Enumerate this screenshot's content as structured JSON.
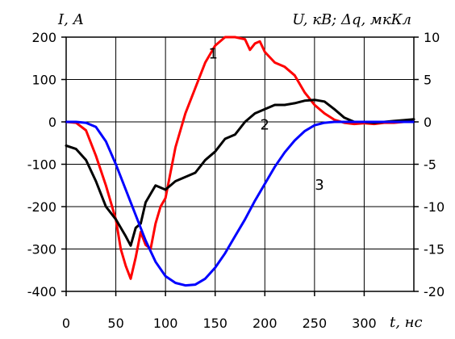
{
  "chart_data": {
    "type": "line",
    "left_axis_label": "I, А",
    "right_axis_label": "U, кВ; Δq, мкКл",
    "x_axis_label": "t, нс",
    "x_ticks": [
      0,
      50,
      100,
      150,
      200,
      250,
      300
    ],
    "xlim": [
      0,
      350
    ],
    "ylim_left": [
      -400,
      200
    ],
    "ylim_right": [
      -20,
      10
    ],
    "left_ticks": [
      200,
      100,
      0,
      -100,
      -200,
      -300,
      -400
    ],
    "right_ticks": [
      10,
      5,
      0,
      -5,
      -10,
      -15,
      -20
    ],
    "grid": true,
    "series": [
      {
        "name": "1",
        "color": "#ff0000",
        "axis": "left",
        "x": [
          0,
          10,
          20,
          30,
          40,
          50,
          55,
          60,
          65,
          70,
          75,
          80,
          85,
          90,
          95,
          100,
          105,
          110,
          120,
          130,
          140,
          150,
          160,
          170,
          180,
          185,
          190,
          195,
          200,
          210,
          220,
          230,
          240,
          250,
          260,
          270,
          280,
          290,
          300,
          310,
          320,
          330,
          340,
          350
        ],
        "y": [
          0,
          -2,
          -20,
          -80,
          -150,
          -230,
          -300,
          -340,
          -370,
          -320,
          -260,
          -290,
          -300,
          -240,
          -200,
          -180,
          -120,
          -60,
          20,
          80,
          140,
          180,
          200,
          200,
          195,
          170,
          185,
          190,
          165,
          140,
          130,
          110,
          70,
          40,
          20,
          5,
          -2,
          -5,
          -3,
          -5,
          -2,
          -2,
          0,
          0
        ]
      },
      {
        "name": "2",
        "color": "#000000",
        "axis": "right",
        "x": [
          0,
          10,
          20,
          30,
          40,
          50,
          60,
          65,
          70,
          75,
          80,
          90,
          100,
          110,
          120,
          130,
          140,
          150,
          160,
          170,
          180,
          190,
          200,
          210,
          220,
          230,
          240,
          250,
          260,
          270,
          280,
          290,
          300,
          310,
          320,
          330,
          340,
          350
        ],
        "y": [
          -2.8,
          -3.2,
          -4.5,
          -7.0,
          -10.0,
          -11.5,
          -13.5,
          -14.6,
          -12.5,
          -12.0,
          -9.5,
          -7.5,
          -8.0,
          -7.0,
          -6.5,
          -6.0,
          -4.5,
          -3.5,
          -2.0,
          -1.5,
          0.0,
          1.0,
          1.5,
          2.0,
          2.0,
          2.2,
          2.5,
          2.6,
          2.4,
          1.5,
          0.5,
          0.0,
          0.0,
          -0.1,
          0.0,
          0.1,
          0.2,
          0.3
        ]
      },
      {
        "name": "3",
        "color": "#0000ff",
        "axis": "right",
        "x": [
          0,
          10,
          20,
          30,
          40,
          50,
          60,
          70,
          80,
          90,
          100,
          110,
          120,
          130,
          140,
          150,
          160,
          170,
          180,
          190,
          200,
          210,
          220,
          230,
          240,
          250,
          260,
          270,
          280,
          290,
          300,
          310,
          320,
          330,
          340,
          350
        ],
        "y": [
          0,
          0,
          -0.1,
          -0.6,
          -2.3,
          -5.0,
          -8.0,
          -11.0,
          -14.0,
          -16.5,
          -18.2,
          -19.0,
          -19.3,
          -19.2,
          -18.5,
          -17.2,
          -15.5,
          -13.5,
          -11.5,
          -9.3,
          -7.3,
          -5.3,
          -3.6,
          -2.2,
          -1.1,
          -0.4,
          -0.1,
          0,
          0,
          0,
          0,
          0,
          0,
          0,
          0,
          0
        ]
      }
    ],
    "curve_labels": [
      {
        "text": "1",
        "x": 148,
        "y": 150,
        "axis": "left"
      },
      {
        "text": "2",
        "x": 200,
        "y": -0.9,
        "axis": "right"
      },
      {
        "text": "3",
        "x": 255,
        "y": -8.0,
        "axis": "right"
      }
    ]
  }
}
